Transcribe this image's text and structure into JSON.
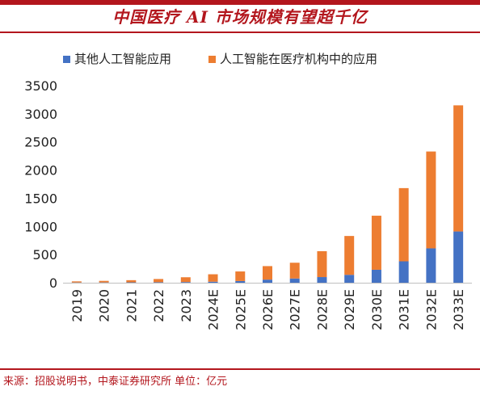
{
  "header": {
    "title": "中国医疗 AI 市场规模有望超千亿"
  },
  "footer": {
    "source": "来源：招股说明书，中泰证券研究所   单位：亿元"
  },
  "colors": {
    "accent": "#b3161d",
    "series_other": "#4472c4",
    "series_medical": "#ed7d31"
  },
  "chart_data": {
    "type": "bar",
    "stacked": true,
    "categories": [
      "2019",
      "2020",
      "2021",
      "2022",
      "2023",
      "2024E",
      "2025E",
      "2026E",
      "2027E",
      "2028E",
      "2029E",
      "2030E",
      "2031E",
      "2032E",
      "2033E"
    ],
    "series": [
      {
        "name": "其他人工智能应用",
        "color": "#4472c4",
        "values": [
          4,
          5,
          7,
          9,
          12,
          18,
          30,
          55,
          75,
          100,
          140,
          230,
          380,
          610,
          910
        ]
      },
      {
        "name": "人工智能在医疗机构中的应用",
        "color": "#ed7d31",
        "values": [
          20,
          28,
          38,
          57,
          85,
          132,
          170,
          240,
          280,
          460,
          690,
          960,
          1300,
          1720,
          2240
        ]
      }
    ],
    "ylim": [
      0,
      3500
    ],
    "yticks": [
      0,
      500,
      1000,
      1500,
      2000,
      2500,
      3000,
      3500
    ],
    "grid": false,
    "legend_position": "top"
  }
}
